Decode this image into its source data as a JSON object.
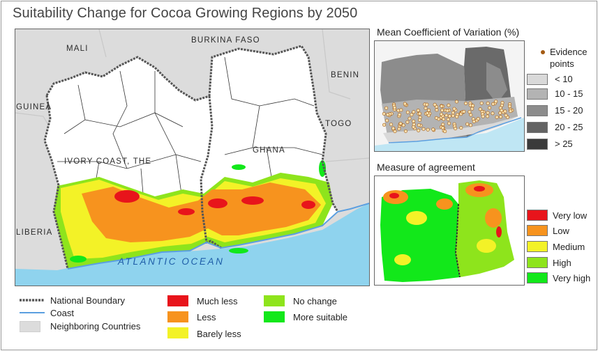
{
  "title": "Suitability Change for Cocoa Growing Regions by 2050",
  "main_map": {
    "country_labels": [
      "MALI",
      "BURKINA FASO",
      "BENIN",
      "GUINEA",
      "TOGO",
      "IVORY COAST, THE",
      "GHANA",
      "LIBERIA"
    ],
    "ocean_label": "ATLANTIC OCEAN"
  },
  "cv_map": {
    "title": "Mean Coefficient of Variation",
    "unit": "(%)",
    "evidence_label": "Evidence points",
    "classes": [
      {
        "label": "< 10",
        "color": "#d9d9d9"
      },
      {
        "label": "10 - 15",
        "color": "#b3b3b3"
      },
      {
        "label": "15 - 20",
        "color": "#8c8c8c"
      },
      {
        "label": "20 - 25",
        "color": "#636363"
      },
      {
        "label": "> 25",
        "color": "#3a3a3a"
      }
    ],
    "evidence_color": "#a35a12",
    "evidence_fill": "#f6dfae"
  },
  "agreement_map": {
    "title": "Measure of agreement",
    "classes": [
      {
        "label": "Very low",
        "color": "#e8141b"
      },
      {
        "label": "Low",
        "color": "#f7931e"
      },
      {
        "label": "Medium",
        "color": "#f3f227"
      },
      {
        "label": "High",
        "color": "#8ee41c"
      },
      {
        "label": "Very high",
        "color": "#12e81a"
      }
    ]
  },
  "legend": {
    "lines": [
      {
        "label": "National Boundary"
      },
      {
        "label": "Coast"
      },
      {
        "label": "Neighboring Countries"
      }
    ],
    "change": [
      {
        "label": "Much less",
        "color": "#e8141b"
      },
      {
        "label": "Less",
        "color": "#f7931e"
      },
      {
        "label": "Barely less",
        "color": "#f3f227"
      },
      {
        "label": "No change",
        "color": "#8ee41c"
      },
      {
        "label": "More suitable",
        "color": "#12e81a"
      }
    ],
    "colors": {
      "coast": "#5b9fe0",
      "neighbor": "#dcdcdc",
      "boundary": "#555555"
    }
  }
}
